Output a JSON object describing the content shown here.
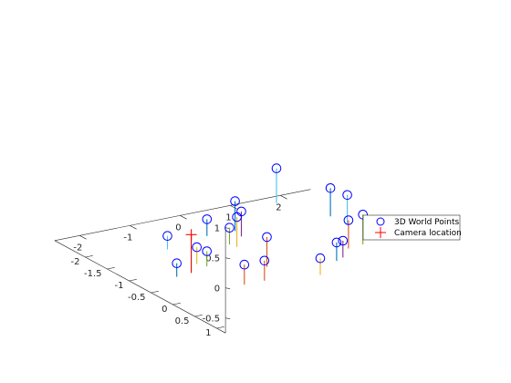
{
  "chart_data": {
    "type": "scatter3d",
    "grid": false,
    "legend_position": "right",
    "axes": {
      "x": {
        "ticks": [
          "-2",
          "-1",
          "0",
          "1",
          "2"
        ]
      },
      "y": {
        "ticks": [
          "1",
          "0.5",
          "0",
          "-0.5",
          "-1",
          "-1.5",
          "-2"
        ]
      },
      "z": {
        "ticks": [
          "1",
          "0.5",
          "0",
          "-0.5"
        ]
      }
    },
    "legend": [
      {
        "label": "3D World Points",
        "marker": "circle",
        "color": "#0000ff"
      },
      {
        "label": "Camera location",
        "marker": "plus",
        "color": "#ff0000"
      }
    ],
    "world_points": [
      {
        "x": -1.5,
        "y": 1.0,
        "z": 0.6,
        "color": "#d95319"
      },
      {
        "x": -1.4,
        "y": 0.2,
        "z": 0.6,
        "color": "#edb120"
      },
      {
        "x": -1.0,
        "y": -0.3,
        "z": 0.6,
        "color": "#0072bd"
      },
      {
        "x": 0.0,
        "y": -0.5,
        "z": 0.9,
        "color": "#4dbeee"
      },
      {
        "x": -0.7,
        "y": -0.5,
        "z": 0.3,
        "color": "#7e2f8e"
      },
      {
        "x": 0.3,
        "y": 0.8,
        "z": 0.5,
        "color": "#d95319"
      },
      {
        "x": 0.5,
        "y": 0.9,
        "z": 0.6,
        "color": "#77ac30"
      },
      {
        "x": 0.8,
        "y": 0.2,
        "z": 0.6,
        "color": "#4dbeee"
      },
      {
        "x": 0.9,
        "y": -0.3,
        "z": 0.5,
        "color": "#0072bd"
      },
      {
        "x": -1.6,
        "y": 0.6,
        "z": 0.0,
        "color": "#d95319"
      },
      {
        "x": -1.2,
        "y": 0.6,
        "z": 0.0,
        "color": "#d95319"
      },
      {
        "x": -1.9,
        "y": -0.6,
        "z": -0.4,
        "color": "#0072bd"
      },
      {
        "x": -1.5,
        "y": -0.6,
        "z": -0.2,
        "color": "#edb120"
      },
      {
        "x": -1.3,
        "y": -0.6,
        "z": -0.3,
        "color": "#77ac30"
      },
      {
        "x": 0.0,
        "y": 0.5,
        "z": -0.2,
        "color": "#edb120"
      },
      {
        "x": 0.5,
        "y": 0.3,
        "z": -0.1,
        "color": "#0072bd"
      },
      {
        "x": 0.8,
        "y": 0.1,
        "z": -0.2,
        "color": "#7e2f8e"
      },
      {
        "x": -0.5,
        "y": -1.0,
        "z": -0.2,
        "color": "#77ac30"
      },
      {
        "x": -0.6,
        "y": -1.4,
        "z": -0.2,
        "color": "#0072bd"
      },
      {
        "x": -1.3,
        "y": -1.5,
        "z": -0.4,
        "color": "#4dbeee"
      }
    ],
    "camera_location": {
      "x": -1.0,
      "y": -1.3,
      "z": -0.35
    }
  }
}
